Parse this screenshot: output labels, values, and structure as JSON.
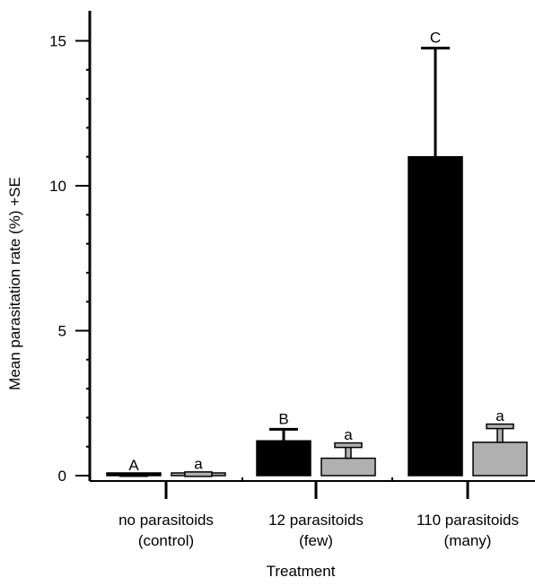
{
  "chart_data": {
    "type": "bar",
    "xlabel": "Treatment",
    "ylabel": "Mean parasitation rate (%) +SE",
    "ylim": [
      0,
      16
    ],
    "yticks": [
      0,
      5,
      10,
      15
    ],
    "grid": false,
    "categories": [
      {
        "line1": "no parasitoids",
        "line2": "(control)"
      },
      {
        "line1": "12 parasitoids",
        "line2": "(few)"
      },
      {
        "line1": "110 parasitoids",
        "line2": "(many)"
      }
    ],
    "series": [
      {
        "color": "#000000",
        "values": [
          0.0,
          1.2,
          11.0
        ],
        "se": [
          0.0,
          0.4,
          3.75
        ],
        "letters": [
          "A",
          "B",
          "C"
        ]
      },
      {
        "color": "#b0b0b0",
        "values": [
          0.05,
          0.6,
          1.15
        ],
        "se": [
          0.0,
          0.45,
          0.55
        ],
        "letters": [
          "a",
          "a",
          "a"
        ]
      }
    ]
  }
}
